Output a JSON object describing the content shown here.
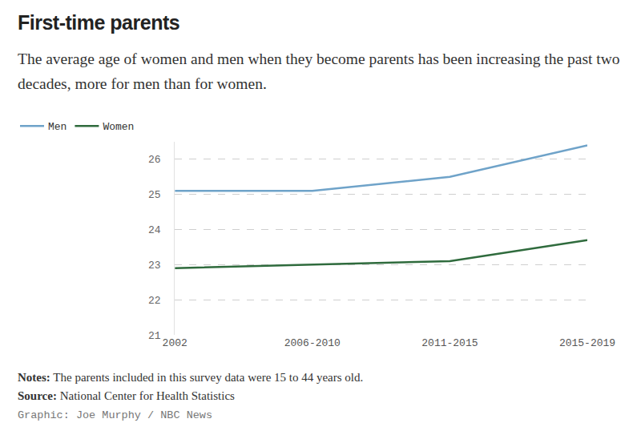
{
  "chart_data": {
    "type": "line",
    "title": "First-time parents",
    "subtitle": "The average age of women and men when they become parents has been increasing the past two decades, more for men than for women.",
    "categories": [
      "2002",
      "2006-2010",
      "2011-2015",
      "2015-2019"
    ],
    "series": [
      {
        "name": "Men",
        "color": "#6fa3c9",
        "values": [
          25.1,
          25.1,
          25.5,
          26.4
        ]
      },
      {
        "name": "Women",
        "color": "#2f6b3d",
        "values": [
          22.9,
          23.0,
          23.1,
          23.7
        ]
      }
    ],
    "ylim": [
      21,
      26.5
    ],
    "yticks": [
      21,
      22,
      23,
      24,
      25,
      26
    ],
    "grid": true,
    "legend": "top-left",
    "notes": {
      "label": "Notes:",
      "text": "The parents included in this survey data were 15 to 44 years old."
    },
    "source": {
      "label": "Source:",
      "text": "National Center for Health Statistics"
    },
    "credit": "Graphic: Joe Murphy / NBC News"
  }
}
